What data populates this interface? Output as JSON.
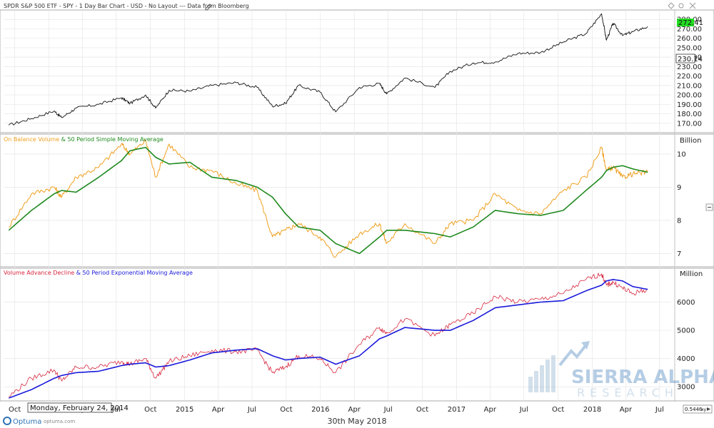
{
  "header": {
    "title": "SPDR S&P 500 ETF - SPY - 1 Day Bar Chart - USD - No Layout --- Data from Bloomberg"
  },
  "colors": {
    "price": "#111111",
    "obv": "#f0a020",
    "obv_sma": "#1f8a1f",
    "vad": "#d7263d",
    "vad_ema": "#1a1adb",
    "last_price_bg": "#22dd22",
    "grid": "#e6e6e6"
  },
  "panels": {
    "price": {
      "last_price": "272.41",
      "marker_price": "230.14"
    },
    "obv": {
      "label_part1": "On Balance Volume",
      "label_sep": " & ",
      "label_part2": "50 Period Simple Moving Average",
      "unit": "Billion"
    },
    "vad": {
      "label_part1": "Volume Advance Decline",
      "label_sep": " & ",
      "label_part2": "50 Period Exponential Moving Average",
      "unit": "Million"
    }
  },
  "footer": {
    "cursor_date": "Monday, February 24, 2014",
    "chart_date": "30th May 2018",
    "brand": "Optuma",
    "brand_url": "optuma.com",
    "zoom_value": "0.5446",
    "zoom_label": "xy"
  },
  "watermark": {
    "line1": "SIERRA ALPHA",
    "line2": "RESEARCH"
  },
  "chart_data": [
    {
      "type": "line",
      "title": "SPDR S&P 500 ETF - SPY - 1 Day Bar Chart - USD - No Layout --- Data from Bloomberg",
      "ylim": [
        160,
        290
      ],
      "ytick_labels": [
        "170.00",
        "180.00",
        "190.00",
        "200.00",
        "210.00",
        "220.00",
        "230.00",
        "240.00",
        "250.00",
        "260.00",
        "270.00",
        "280.00"
      ],
      "ytick_values": [
        170,
        180,
        190,
        200,
        210,
        220,
        230,
        240,
        250,
        260,
        270,
        280
      ],
      "x": [
        "2013-09-15",
        "2013-11-15",
        "2014-01-15",
        "2014-02-04",
        "2014-03-15",
        "2014-05-15",
        "2014-07-15",
        "2014-08-07",
        "2014-09-18",
        "2014-10-15",
        "2014-11-20",
        "2015-01-15",
        "2015-03-15",
        "2015-05-20",
        "2015-07-15",
        "2015-08-25",
        "2015-09-29",
        "2015-11-03",
        "2015-12-31",
        "2016-02-11",
        "2016-04-15",
        "2016-06-08",
        "2016-06-27",
        "2016-08-15",
        "2016-11-04",
        "2016-12-15",
        "2017-02-15",
        "2017-04-15",
        "2017-06-15",
        "2017-08-15",
        "2017-10-15",
        "2017-12-15",
        "2018-01-26",
        "2018-02-08",
        "2018-02-26",
        "2018-03-23",
        "2018-04-20",
        "2018-05-30"
      ],
      "series": [
        {
          "values": [
            168,
            175,
            183,
            176,
            186,
            190,
            197,
            191,
            200,
            186,
            205,
            204,
            210,
            213,
            208,
            188,
            191,
            210,
            203,
            182,
            208,
            212,
            201,
            218,
            208,
            225,
            234,
            235,
            244,
            245,
            256,
            265,
            286,
            258,
            276,
            263,
            267,
            272.41
          ]
        }
      ]
    },
    {
      "type": "line",
      "ylim": [
        6.6,
        10.6
      ],
      "ylabel": "Billion",
      "ytick_labels": [
        "7",
        "8",
        "9",
        "10"
      ],
      "ytick_values": [
        7,
        8,
        9,
        10
      ],
      "x": [
        "2013-09-15",
        "2013-11-15",
        "2014-01-15",
        "2014-02-04",
        "2014-03-15",
        "2014-05-15",
        "2014-07-15",
        "2014-08-07",
        "2014-09-18",
        "2014-10-15",
        "2014-11-20",
        "2015-01-15",
        "2015-03-15",
        "2015-05-20",
        "2015-07-15",
        "2015-08-25",
        "2015-09-29",
        "2015-11-03",
        "2015-12-31",
        "2016-02-11",
        "2016-04-15",
        "2016-06-08",
        "2016-06-27",
        "2016-08-15",
        "2016-11-04",
        "2016-12-15",
        "2017-02-15",
        "2017-04-15",
        "2017-06-15",
        "2017-08-15",
        "2017-10-15",
        "2017-12-15",
        "2018-01-26",
        "2018-02-08",
        "2018-02-26",
        "2018-03-23",
        "2018-04-20",
        "2018-05-30"
      ],
      "series": [
        {
          "name": "On Balance Volume",
          "values": [
            7.8,
            8.8,
            9.0,
            8.7,
            9.3,
            9.6,
            10.3,
            10.0,
            10.4,
            9.3,
            10.3,
            9.6,
            9.5,
            9.1,
            8.9,
            7.5,
            7.7,
            7.9,
            7.5,
            6.9,
            7.6,
            7.9,
            7.3,
            7.9,
            7.3,
            7.9,
            8.0,
            8.8,
            8.3,
            8.2,
            8.9,
            9.3,
            10.2,
            9.5,
            9.6,
            9.3,
            9.4,
            9.45
          ]
        },
        {
          "name": "50 Period Simple Moving Average",
          "values": [
            7.7,
            8.3,
            8.8,
            8.9,
            8.85,
            9.3,
            9.8,
            10.1,
            10.2,
            9.9,
            9.7,
            9.75,
            9.3,
            9.2,
            9.0,
            8.7,
            8.2,
            7.8,
            7.7,
            7.3,
            7.0,
            7.5,
            7.7,
            7.7,
            7.6,
            7.5,
            7.8,
            8.3,
            8.2,
            8.15,
            8.3,
            8.9,
            9.3,
            9.5,
            9.6,
            9.65,
            9.55,
            9.45
          ]
        }
      ]
    },
    {
      "type": "line",
      "ylim": [
        2500,
        7200
      ],
      "ylabel": "Million",
      "ytick_labels": [
        "3000",
        "4000",
        "5000",
        "6000"
      ],
      "ytick_values": [
        3000,
        4000,
        5000,
        6000
      ],
      "x": [
        "2013-09-15",
        "2013-11-15",
        "2014-01-15",
        "2014-02-04",
        "2014-03-15",
        "2014-05-15",
        "2014-07-15",
        "2014-08-07",
        "2014-09-18",
        "2014-10-15",
        "2014-11-20",
        "2015-01-15",
        "2015-03-15",
        "2015-05-20",
        "2015-07-15",
        "2015-08-25",
        "2015-09-29",
        "2015-11-03",
        "2015-12-31",
        "2016-02-11",
        "2016-04-15",
        "2016-06-08",
        "2016-06-27",
        "2016-08-15",
        "2016-11-04",
        "2016-12-15",
        "2017-02-15",
        "2017-04-15",
        "2017-06-15",
        "2017-08-15",
        "2017-10-15",
        "2017-12-15",
        "2018-01-26",
        "2018-02-08",
        "2018-02-26",
        "2018-03-23",
        "2018-04-20",
        "2018-05-30"
      ],
      "series": [
        {
          "name": "Volume Advance Decline",
          "values": [
            2650,
            3300,
            3600,
            3200,
            3700,
            3700,
            3900,
            3800,
            4000,
            3300,
            3900,
            4100,
            4300,
            4250,
            4300,
            3500,
            3700,
            4100,
            4000,
            3500,
            4500,
            5100,
            4900,
            5400,
            4800,
            5200,
            5600,
            6200,
            6000,
            6100,
            6300,
            6800,
            7000,
            6600,
            6700,
            6500,
            6300,
            6450
          ]
        },
        {
          "name": "50 Period Exponential Moving Average",
          "values": [
            2600,
            2900,
            3300,
            3400,
            3500,
            3550,
            3750,
            3800,
            3850,
            3700,
            3750,
            3950,
            4200,
            4300,
            4350,
            4100,
            3950,
            4000,
            4050,
            3800,
            4100,
            4700,
            4800,
            5100,
            5000,
            5000,
            5350,
            5800,
            5900,
            6000,
            6050,
            6400,
            6600,
            6750,
            6800,
            6750,
            6550,
            6450
          ]
        }
      ]
    }
  ],
  "x_axis": {
    "date_start": "2013-09-01",
    "date_end": "2018-08-01",
    "ticks": [
      {
        "label": "Oct",
        "date": "2013-10-01"
      },
      {
        "label": "2014",
        "date": "2014-01-01"
      },
      {
        "label": "Apr",
        "date": "2014-04-01"
      },
      {
        "label": "Jul",
        "date": "2014-07-01"
      },
      {
        "label": "Oct",
        "date": "2014-10-01"
      },
      {
        "label": "2015",
        "date": "2015-01-01"
      },
      {
        "label": "Apr",
        "date": "2015-04-01"
      },
      {
        "label": "Jul",
        "date": "2015-07-01"
      },
      {
        "label": "Oct",
        "date": "2015-10-01"
      },
      {
        "label": "2016",
        "date": "2016-01-01"
      },
      {
        "label": "Apr",
        "date": "2016-04-01"
      },
      {
        "label": "Jul",
        "date": "2016-07-01"
      },
      {
        "label": "Oct",
        "date": "2016-10-01"
      },
      {
        "label": "2017",
        "date": "2017-01-01"
      },
      {
        "label": "Apr",
        "date": "2017-04-01"
      },
      {
        "label": "Jul",
        "date": "2017-07-01"
      },
      {
        "label": "Oct",
        "date": "2017-10-01"
      },
      {
        "label": "2018",
        "date": "2018-01-01"
      },
      {
        "label": "Apr",
        "date": "2018-04-01"
      },
      {
        "label": "Jul",
        "date": "2018-07-01"
      }
    ]
  }
}
